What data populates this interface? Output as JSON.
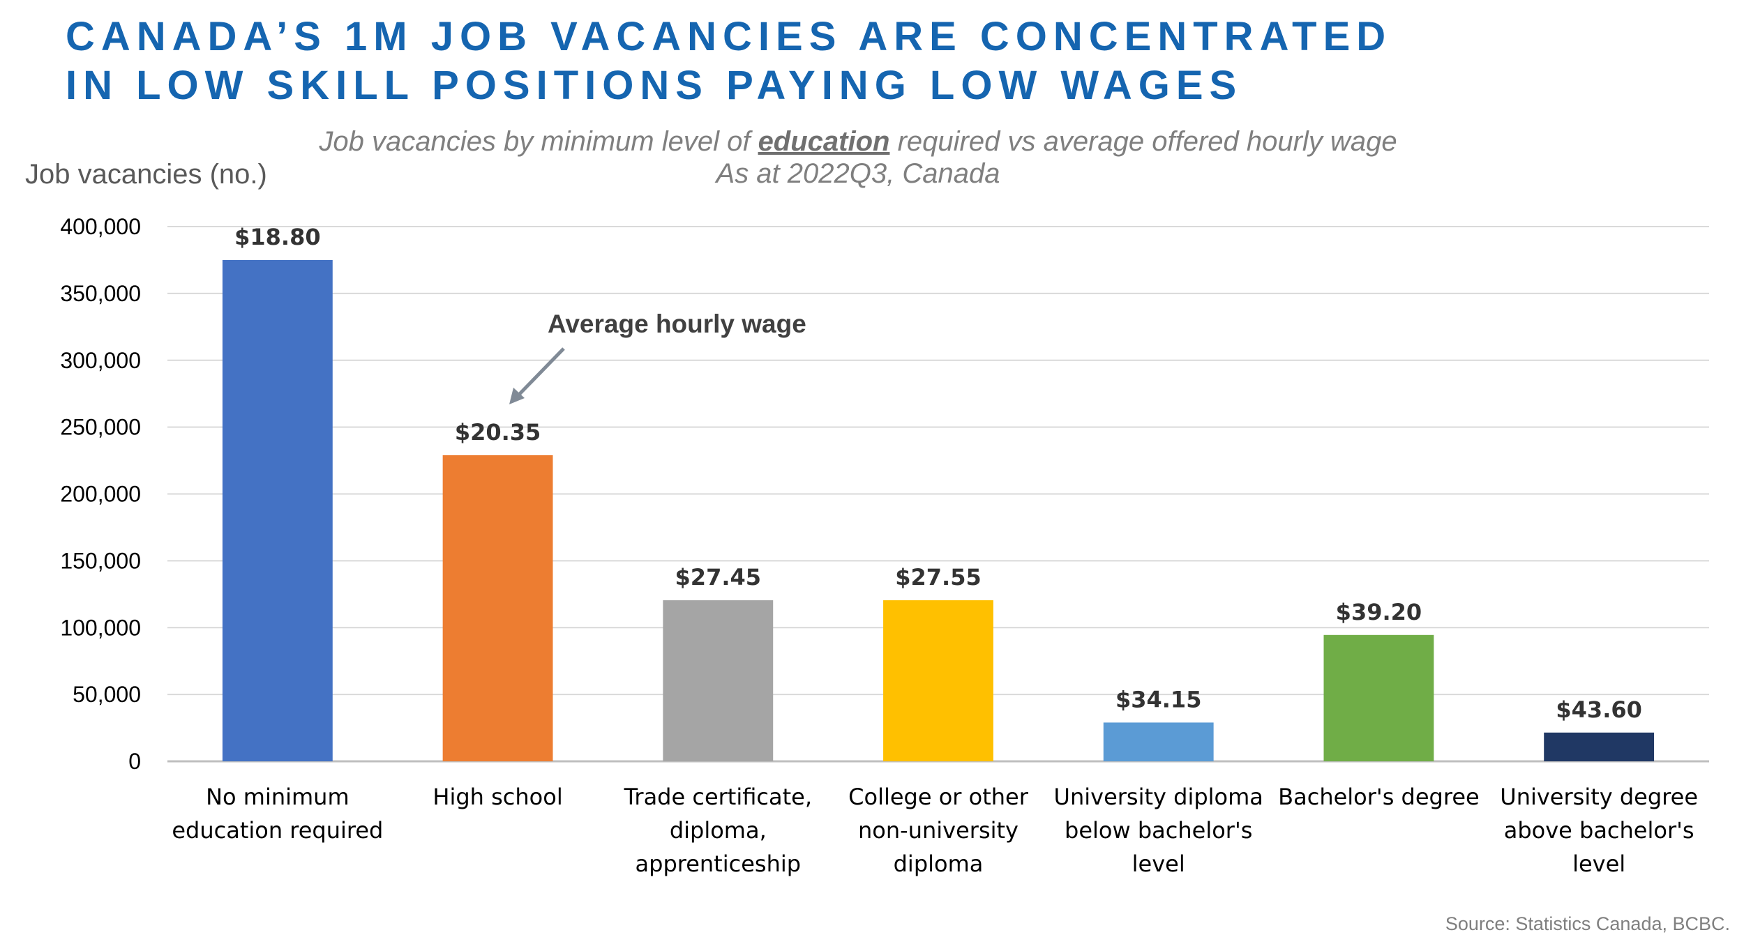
{
  "title_line1": "CANADA’S 1M JOB VACANCIES ARE CONCENTRATED",
  "title_line2": "IN LOW SKILL POSITIONS PAYING LOW WAGES",
  "subtitle": {
    "part1": "Job vacancies by minimum level of ",
    "emphasis": "education",
    "part2": " required vs average offered hourly wage",
    "line2": "As at 2022Q3, Canada"
  },
  "source": "Source: Statistics Canada, BCBC.",
  "annotation": "Average hourly wage",
  "chart_data": {
    "type": "bar",
    "ylabel": "Job vacancies (no.)",
    "xlabel": "",
    "ylim": [
      0,
      400000
    ],
    "yticks": [
      0,
      50000,
      100000,
      150000,
      200000,
      250000,
      300000,
      350000,
      400000
    ],
    "ytick_labels": [
      "0",
      "50,000",
      "100,000",
      "150,000",
      "200,000",
      "250,000",
      "300,000",
      "350,000",
      "400,000"
    ],
    "grid": true,
    "categories": [
      [
        "No minimum",
        "education required"
      ],
      [
        "High school"
      ],
      [
        "Trade certificate,",
        "diploma,",
        "apprenticeship"
      ],
      [
        "College or other",
        "non-university",
        "diploma"
      ],
      [
        "University diploma",
        "below bachelor's",
        "level"
      ],
      [
        "Bachelor's degree"
      ],
      [
        "University degree",
        "above  bachelor's",
        "level"
      ]
    ],
    "values": [
      375000,
      229000,
      120500,
      120500,
      29000,
      94500,
      21500
    ],
    "data_labels": [
      "$18.80",
      "$20.35",
      "$27.45",
      "$27.55",
      "$34.15",
      "$39.20",
      "$43.60"
    ],
    "colors": [
      "#4472c4",
      "#ed7d31",
      "#a5a5a5",
      "#ffc000",
      "#5b9bd5",
      "#70ad47",
      "#203864"
    ]
  }
}
